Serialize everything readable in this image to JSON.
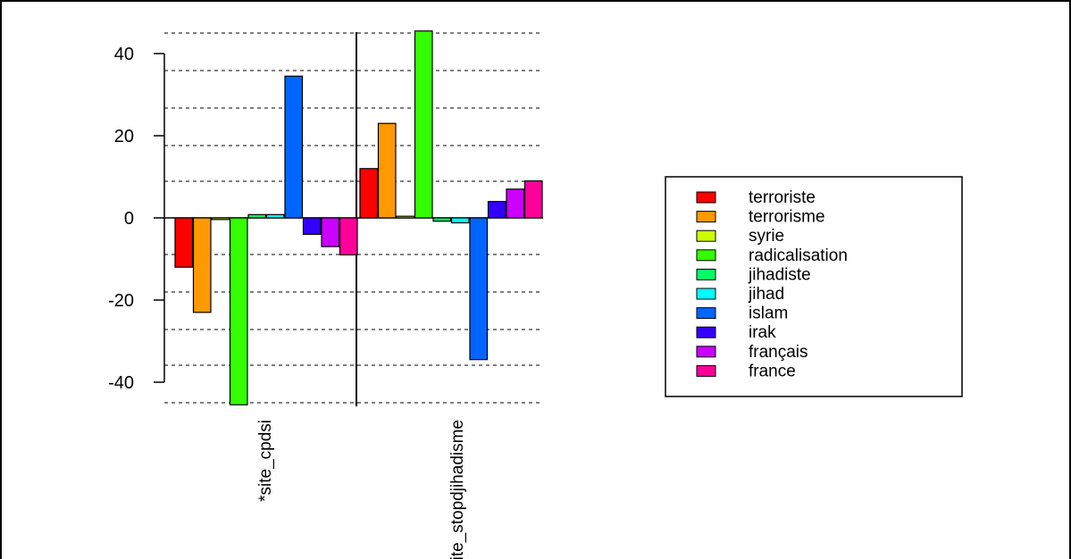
{
  "chart_data": {
    "type": "bar",
    "categories": [
      "*site_cpdsi",
      "*site_stopdjihadisme"
    ],
    "series": [
      {
        "name": "terroriste",
        "color": "#ff0000",
        "values": [
          -12,
          12
        ]
      },
      {
        "name": "terrorisme",
        "color": "#ff9900",
        "values": [
          -23,
          23
        ]
      },
      {
        "name": "syrie",
        "color": "#ccff00",
        "values": [
          -0.4,
          0.4
        ]
      },
      {
        "name": "radicalisation",
        "color": "#33ff00",
        "values": [
          -45.5,
          45.5
        ]
      },
      {
        "name": "jihadiste",
        "color": "#00ff66",
        "values": [
          0.8,
          -0.8
        ]
      },
      {
        "name": "jihad",
        "color": "#00ffff",
        "values": [
          0.8,
          -1.2
        ]
      },
      {
        "name": "islam",
        "color": "#0066ff",
        "values": [
          34.5,
          -34.5
        ]
      },
      {
        "name": "irak",
        "color": "#3300ff",
        "values": [
          -4,
          4
        ]
      },
      {
        "name": "français",
        "color": "#cc00ff",
        "values": [
          -7,
          7
        ]
      },
      {
        "name": "france",
        "color": "#ff0099",
        "values": [
          -9,
          9
        ]
      }
    ],
    "yticks": [
      40,
      20,
      0,
      -20,
      -40
    ],
    "ylim": [
      -45.5,
      45.5
    ],
    "legend_position": "right",
    "grid": "dashed horizontal lines"
  }
}
